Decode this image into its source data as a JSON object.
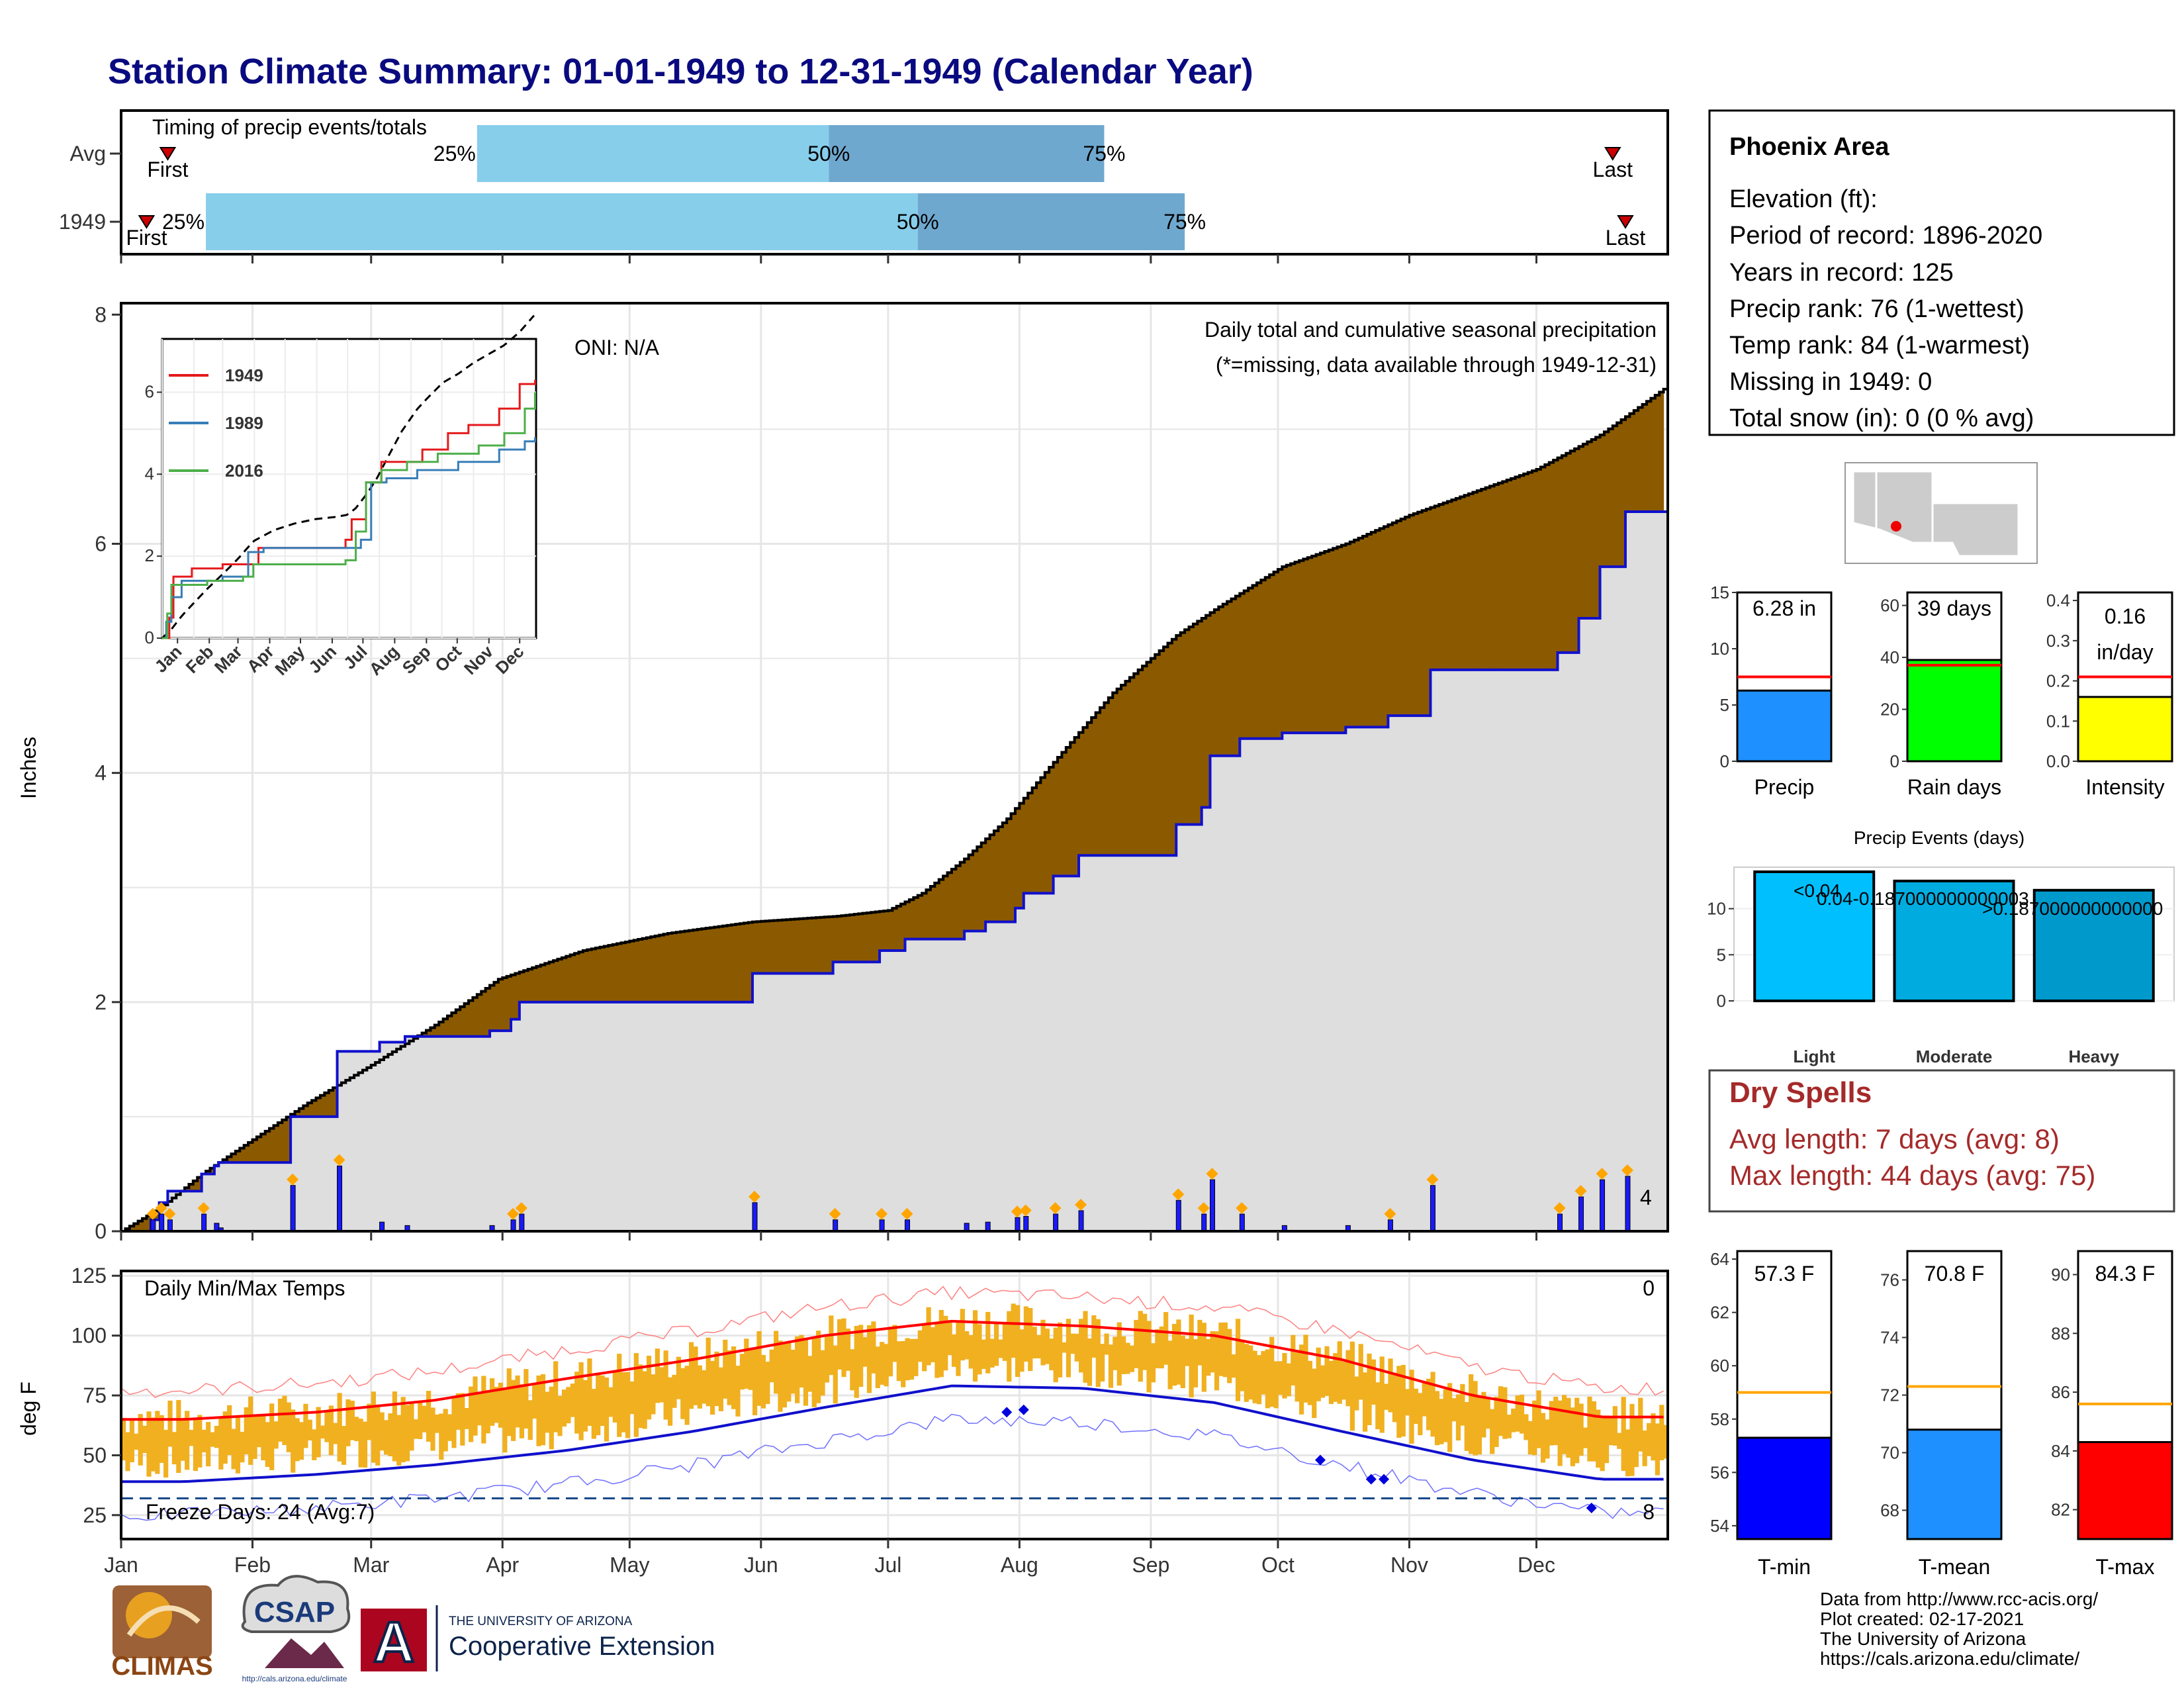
{
  "page": {
    "title": "Station Climate Summary: 01-01-1949 to 12-31-1949 (Calendar Year)",
    "title_color": "#0a0a80"
  },
  "colors": {
    "bar_light": "#87ceeb",
    "bar_dark": "#6fa8cf",
    "surplus": "#8b5a00",
    "deficit": "#008800",
    "observed_line": "#1010cc",
    "cumulative_fill": "#dedede",
    "temp_bar": "#f0b020",
    "max_norm": "#ff0000",
    "min_norm": "#1010cc",
    "marker": "#cc0000",
    "precip_bar": "#1e90ff",
    "rain_days_bar": "#00ff00",
    "intensity_bar": "#ffff00",
    "avg_line": "#ff0000",
    "tmin_bar": "#0000ff",
    "tmean_bar": "#1e90ff",
    "tmax_bar": "#ff0000",
    "temp_avg_line": "#ffa500",
    "dry_spell_text": "#a52a2a",
    "events_light": "#00bfff",
    "events_moderate": "#00acdf",
    "events_heavy": "#0099cc",
    "anomaly_text": "#ff0000",
    "missing_text": "#ff0000"
  },
  "timing": {
    "header": "Timing of precip events/totals",
    "row_labels": [
      "Avg",
      "1949"
    ],
    "pct_labels": [
      "25%",
      "50%",
      "75%"
    ],
    "first_label": "First",
    "last_label": "Last",
    "avg": {
      "first_doy": 12,
      "q25_doy": 85,
      "q50_doy": 168,
      "q75_doy": 233,
      "last_doy": 353
    },
    "year": {
      "first_doy": 7,
      "q25_doy": 21,
      "q50_doy": 189,
      "q75_doy": 252,
      "last_doy": 356
    }
  },
  "precip_panel": {
    "ylabel": "Inches",
    "ticks": [
      "0",
      "2",
      "4",
      "6",
      "8"
    ],
    "oni": "ONI: N/A",
    "title": "Daily total and cumulative seasonal precipitation",
    "subtitle": "(*=missing, data available through 1949-12-31)",
    "corner_count": "4"
  },
  "inset": {
    "y_ticks": [
      "0",
      "2",
      "4",
      "6"
    ],
    "months": [
      "Jan",
      "Feb",
      "Mar",
      "Apr",
      "May",
      "Jun",
      "Jul",
      "Aug",
      "Sep",
      "Oct",
      "Nov",
      "Dec"
    ],
    "legend": [
      {
        "label": "1949",
        "color": "#e41a1c"
      },
      {
        "label": "1989",
        "color": "#377eb8"
      },
      {
        "label": "2016",
        "color": "#4daf4a"
      }
    ]
  },
  "temp_panel": {
    "ylabel": "deg F",
    "label": "Daily Min/Max Temps",
    "ticks": [
      "25",
      "50",
      "75",
      "100",
      "125"
    ],
    "freeze": "Freeze Days: 24 (Avg:7)",
    "top_count": "0",
    "bottom_count": "8"
  },
  "months": [
    "Jan",
    "Feb",
    "Mar",
    "Apr",
    "May",
    "Jun",
    "Jul",
    "Aug",
    "Sep",
    "Oct",
    "Nov",
    "Dec"
  ],
  "station": {
    "name": "Phoenix Area",
    "lines": [
      "Elevation (ft):",
      "Period of record: 1896-2020",
      "Years in record: 125",
      "Precip rank: 76 (1-wettest)",
      "Temp rank: 84 (1-warmest)",
      "Missing in 1949: 0",
      "Total snow (in): 0 (0 % avg)"
    ]
  },
  "mini_precip": [
    {
      "label": "Precip",
      "value_text": "6.28 in",
      "ticks": [
        "0",
        "5",
        "10",
        "15"
      ]
    },
    {
      "label": "Rain days",
      "value_text": "39 days",
      "ticks": [
        "0",
        "20",
        "40",
        "60"
      ]
    },
    {
      "label": "Intensity",
      "value_text_1": "0.16",
      "value_text_2": "in/day",
      "ticks": [
        "0.0",
        "0.1",
        "0.2",
        "0.3",
        "0.4"
      ]
    }
  ],
  "events": {
    "title": "Precip Events (days)",
    "ticks": [
      "0",
      "5",
      "10"
    ],
    "categories": [
      "Light",
      "Moderate",
      "Heavy"
    ],
    "bar_labels": [
      "<0.04",
      "0.04-0.187000000000003",
      ">0.187000000000000"
    ]
  },
  "dry_spells": {
    "title": "Dry Spells",
    "avg": "Avg length: 7 days (avg: 8)",
    "max": "Max length: 44 days (avg: 75)"
  },
  "mini_temp": [
    {
      "label": "T-min",
      "value_text": "57.3 F",
      "ticks": [
        "54",
        "56",
        "58",
        "60",
        "62",
        "64"
      ]
    },
    {
      "label": "T-mean",
      "value_text": "70.8 F",
      "ticks": [
        "68",
        "70",
        "72",
        "74",
        "76"
      ]
    },
    {
      "label": "T-max",
      "value_text": "84.3 F",
      "ticks": [
        "82",
        "84",
        "86",
        "88",
        "90"
      ]
    }
  ],
  "credits": [
    "Data from http://www.rcc-acis.org/",
    "Plot created: 02-17-2021",
    "The University of Arizona",
    "https://cals.arizona.edu/climate/"
  ],
  "logos": {
    "climas": "CLIMAS",
    "csap": "CSAP",
    "csap_url": "http://cals.arizona.edu/climate",
    "ua_line1": "THE UNIVERSITY OF ARIZONA",
    "ua_line2": "Cooperative Extension",
    "ua_letter": "A"
  },
  "chart_data": [
    {
      "type": "bar",
      "title": "Timing of precip events/totals",
      "categories": [
        "Avg",
        "1949"
      ],
      "series": [
        {
          "name": "25%",
          "values": [
            85,
            21
          ]
        },
        {
          "name": "50%",
          "values": [
            168,
            189
          ]
        },
        {
          "name": "75%",
          "values": [
            233,
            252
          ]
        }
      ]
    },
    {
      "type": "area",
      "title": "Daily total and cumulative seasonal precipitation",
      "ylabel": "Inches",
      "ylim": [
        0,
        8.1
      ],
      "x_units": "day of year",
      "series": [
        {
          "name": "cumulative normal",
          "x": [
            1,
            10,
            20,
            30,
            45,
            60,
            75,
            90,
            110,
            130,
            150,
            170,
            182,
            190,
            200,
            210,
            220,
            235,
            250,
            260,
            275,
            290,
            305,
            320,
            335,
            350,
            365
          ],
          "values": [
            0,
            0.2,
            0.5,
            0.75,
            1.12,
            1.45,
            1.8,
            2.2,
            2.45,
            2.6,
            2.7,
            2.75,
            2.8,
            2.95,
            3.25,
            3.6,
            4.05,
            4.7,
            5.2,
            5.45,
            5.8,
            6.0,
            6.25,
            6.45,
            6.65,
            6.95,
            7.35
          ]
        },
        {
          "name": "1949 observed",
          "x": [
            1,
            8,
            10,
            12,
            20,
            23,
            24,
            34,
            41,
            52,
            62,
            68,
            82,
            88,
            93,
            95,
            150,
            169,
            180,
            186,
            200,
            205,
            212,
            214,
            221,
            227,
            250,
            256,
            258,
            265,
            275,
            290,
            300,
            310,
            340,
            345,
            350,
            356,
            365
          ],
          "values": [
            0,
            0.1,
            0.25,
            0.35,
            0.5,
            0.57,
            0.6,
            0.6,
            1.0,
            1.57,
            1.65,
            1.7,
            1.7,
            1.75,
            1.85,
            2.0,
            2.25,
            2.35,
            2.45,
            2.55,
            2.62,
            2.7,
            2.82,
            2.95,
            3.1,
            3.28,
            3.55,
            3.7,
            4.15,
            4.3,
            4.35,
            4.4,
            4.5,
            4.9,
            5.05,
            5.35,
            5.8,
            6.28,
            6.28
          ]
        }
      ]
    },
    {
      "type": "line",
      "title": "Daily Min/Max Temps",
      "ylabel": "deg F",
      "x": [
        "Jan",
        "Feb",
        "Mar",
        "Apr",
        "May",
        "Jun",
        "Jul",
        "Aug",
        "Sep",
        "Oct",
        "Nov",
        "Dec"
      ],
      "series": [
        {
          "name": "normal max",
          "values": [
            65,
            68,
            73,
            82,
            90,
            100,
            106,
            104,
            100,
            90,
            75,
            66
          ]
        },
        {
          "name": "normal min",
          "values": [
            39,
            42,
            46,
            52,
            60,
            70,
            79,
            78,
            72,
            60,
            48,
            40
          ]
        }
      ]
    },
    {
      "type": "bar",
      "categories": [
        "Precip",
        "Rain days",
        "Intensity"
      ],
      "series": [
        {
          "name": "1949",
          "values": [
            6.28,
            39,
            0.16
          ]
        },
        {
          "name": "avg",
          "values": [
            7.5,
            37,
            0.21
          ]
        }
      ]
    },
    {
      "type": "bar",
      "title": "Precip Events (days)",
      "categories": [
        "Light",
        "Moderate",
        "Heavy"
      ],
      "values": [
        14,
        13,
        12
      ]
    },
    {
      "type": "bar",
      "categories": [
        "T-min",
        "T-mean",
        "T-max"
      ],
      "series": [
        {
          "name": "1949",
          "values": [
            57.3,
            70.8,
            84.3
          ]
        },
        {
          "name": "avg",
          "values": [
            59.0,
            72.3,
            85.6
          ]
        }
      ]
    }
  ]
}
